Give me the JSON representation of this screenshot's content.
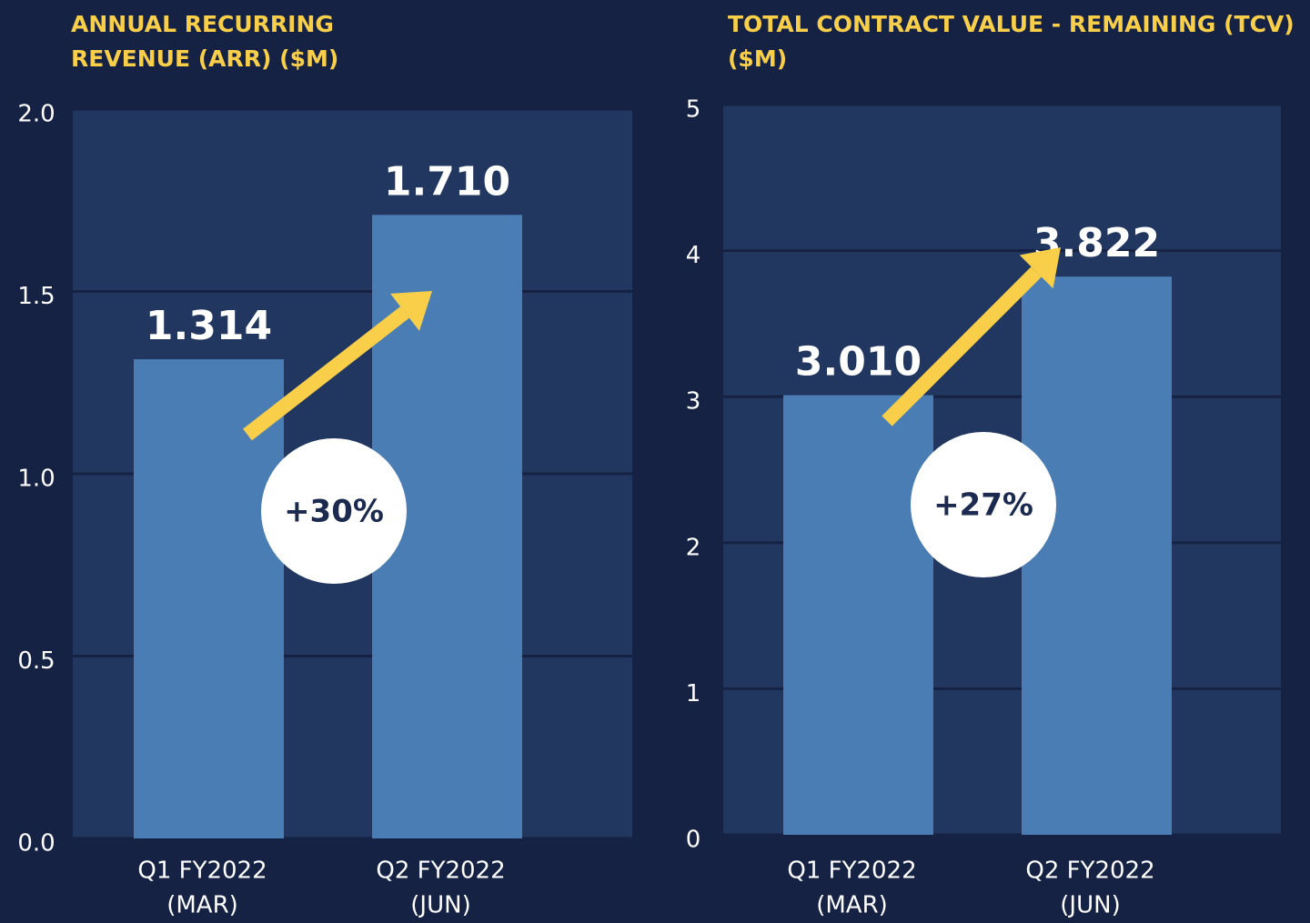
{
  "chart_data": [
    {
      "type": "bar",
      "title": "ANNUAL RECURRING REVENUE (ARR) ($M)",
      "categories": [
        [
          "Q1 FY2022",
          "(MAR)"
        ],
        [
          "Q2 FY2022",
          "(JUN)"
        ]
      ],
      "values": [
        1.314,
        1.71
      ],
      "value_labels": [
        "1.314",
        "1.710"
      ],
      "color": "#4a7db3",
      "ylim": [
        0,
        2
      ],
      "yticks": [
        {
          "value": 0,
          "label": "0.0"
        },
        {
          "value": 0.5,
          "label": "0.5"
        },
        {
          "value": 1,
          "label": "1.0"
        },
        {
          "value": 1.5,
          "label": "1.5"
        },
        {
          "value": 2,
          "label": "2.0"
        }
      ],
      "grid": true,
      "annotation": "+30%"
    },
    {
      "type": "bar",
      "title": "TOTAL CONTRACT VALUE - REMAINING (TCV) ($M)",
      "categories": [
        [
          "Q1 FY2022",
          "(MAR)"
        ],
        [
          "Q2 FY2022",
          "(JUN)"
        ]
      ],
      "values": [
        3.01,
        3.822
      ],
      "value_labels": [
        "3.010",
        "3.822"
      ],
      "color": "#4a7db3",
      "ylim": [
        0,
        5
      ],
      "yticks": [
        0,
        1,
        2,
        3,
        4,
        5
      ],
      "grid": true,
      "annotation": "+27%"
    }
  ]
}
